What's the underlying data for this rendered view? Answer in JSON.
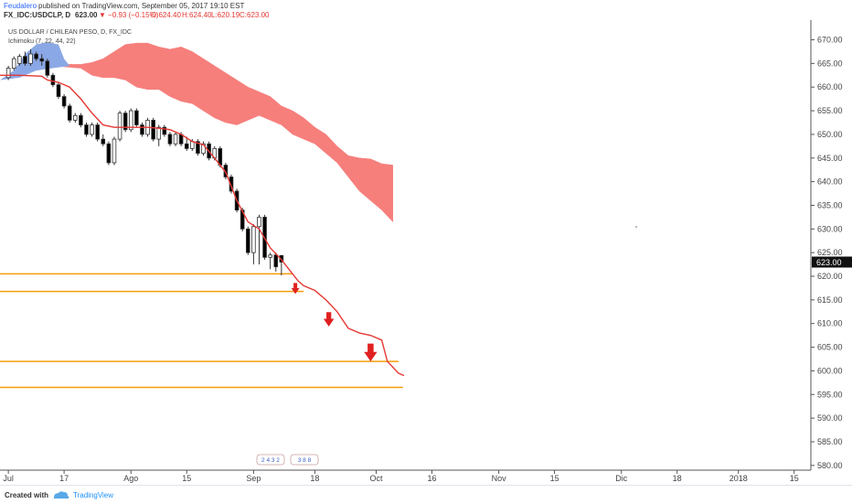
{
  "header": {
    "user": "Feudalero",
    "published": "published on TradingView.com, September 05, 2017 19:10 EST",
    "symbol": "FX_IDC:USDCLP, D",
    "last": "623.00",
    "change": "▼ −0.93 (−0.15%)",
    "open": "O:624.40",
    "high": "H:624.40",
    "low": "L:620.19",
    "close": "C:623.00",
    "colors": {
      "user": "#2962ff",
      "change": "#e53935",
      "ohlc": "#e53935"
    }
  },
  "legend": {
    "title": "US DOLLAR / CHILEAN PESO, D, FX_IDC",
    "indicator": "Ichimoku (7, 22, 44, 22)"
  },
  "price_badge": "623.00",
  "footer": {
    "created": "Created with",
    "brand": "TradingView"
  },
  "event_markers": [
    "2 4 3 2",
    "3 8 8"
  ],
  "chart_data": {
    "type": "candlestick",
    "title": "US DOLLAR / CHILEAN PESO, D, FX_IDC",
    "y_axis_position": "right",
    "y_range": [
      579,
      673
    ],
    "y_ticks": [
      580,
      585,
      590,
      595,
      600,
      605,
      610,
      615,
      620,
      625,
      630,
      635,
      640,
      645,
      650,
      655,
      660,
      665,
      670
    ],
    "x_ticks": [
      "Jul",
      "17",
      "Ago",
      "15",
      "Sep",
      "18",
      "Oct",
      "16",
      "Nov",
      "15",
      "Dic",
      "18",
      "2018",
      "15"
    ],
    "x_tick_index": [
      0,
      10,
      22,
      32,
      44,
      55,
      66,
      76,
      88,
      98,
      110,
      120,
      131,
      141
    ],
    "x_range": [
      -1.5,
      144
    ],
    "candles": [
      {
        "i": 0,
        "o": 662,
        "h": 664.5,
        "l": 661.5,
        "c": 664
      },
      {
        "i": 1,
        "o": 664,
        "h": 666.5,
        "l": 663.5,
        "c": 666
      },
      {
        "i": 2,
        "o": 665,
        "h": 667,
        "l": 664.5,
        "c": 666.5
      },
      {
        "i": 3,
        "o": 666.5,
        "h": 667.5,
        "l": 664.5,
        "c": 665
      },
      {
        "i": 4,
        "o": 665,
        "h": 668,
        "l": 664.5,
        "c": 667
      },
      {
        "i": 5,
        "o": 667,
        "h": 667.5,
        "l": 665.5,
        "c": 666
      },
      {
        "i": 6,
        "o": 666,
        "h": 667,
        "l": 664.5,
        "c": 665.5
      },
      {
        "i": 7,
        "o": 665.5,
        "h": 666,
        "l": 662,
        "c": 662.5
      },
      {
        "i": 8,
        "o": 662.5,
        "h": 663,
        "l": 660,
        "c": 660.5
      },
      {
        "i": 9,
        "o": 660.5,
        "h": 661,
        "l": 657.5,
        "c": 658
      },
      {
        "i": 10,
        "o": 658,
        "h": 658.5,
        "l": 655.5,
        "c": 656
      },
      {
        "i": 11,
        "o": 656,
        "h": 656.5,
        "l": 652.5,
        "c": 653
      },
      {
        "i": 12,
        "o": 653,
        "h": 654.5,
        "l": 652.5,
        "c": 654
      },
      {
        "i": 13,
        "o": 654,
        "h": 654.5,
        "l": 651.5,
        "c": 652
      },
      {
        "i": 14,
        "o": 652,
        "h": 652.5,
        "l": 649.5,
        "c": 650
      },
      {
        "i": 15,
        "o": 650,
        "h": 652.5,
        "l": 649.5,
        "c": 652
      },
      {
        "i": 16,
        "o": 652,
        "h": 652.5,
        "l": 648.5,
        "c": 649
      },
      {
        "i": 17,
        "o": 649,
        "h": 650,
        "l": 647.5,
        "c": 648
      },
      {
        "i": 18,
        "o": 648,
        "h": 648.5,
        "l": 643.5,
        "c": 644
      },
      {
        "i": 19,
        "o": 644,
        "h": 649.5,
        "l": 643.5,
        "c": 649
      },
      {
        "i": 20,
        "o": 649,
        "h": 655,
        "l": 648.5,
        "c": 654.5
      },
      {
        "i": 21,
        "o": 654.5,
        "h": 655,
        "l": 650.5,
        "c": 651
      },
      {
        "i": 22,
        "o": 651,
        "h": 655.5,
        "l": 650.5,
        "c": 655
      },
      {
        "i": 23,
        "o": 655,
        "h": 655.5,
        "l": 651.5,
        "c": 652
      },
      {
        "i": 24,
        "o": 652,
        "h": 652.5,
        "l": 649.5,
        "c": 650
      },
      {
        "i": 25,
        "o": 650,
        "h": 653.5,
        "l": 649.5,
        "c": 653
      },
      {
        "i": 26,
        "o": 653,
        "h": 653.5,
        "l": 648.5,
        "c": 649
      },
      {
        "i": 27,
        "o": 649,
        "h": 652,
        "l": 647.5,
        "c": 651.5
      },
      {
        "i": 28,
        "o": 651.5,
        "h": 652,
        "l": 649.5,
        "c": 650
      },
      {
        "i": 29,
        "o": 650,
        "h": 650.5,
        "l": 647.5,
        "c": 648
      },
      {
        "i": 30,
        "o": 648,
        "h": 650.5,
        "l": 647.5,
        "c": 650
      },
      {
        "i": 31,
        "o": 650,
        "h": 650.5,
        "l": 647.5,
        "c": 648
      },
      {
        "i": 32,
        "o": 648,
        "h": 649.5,
        "l": 646.5,
        "c": 647
      },
      {
        "i": 33,
        "o": 647,
        "h": 649,
        "l": 646.5,
        "c": 648.5
      },
      {
        "i": 34,
        "o": 648.5,
        "h": 649,
        "l": 645.5,
        "c": 646
      },
      {
        "i": 35,
        "o": 646,
        "h": 648.5,
        "l": 645.5,
        "c": 648
      },
      {
        "i": 36,
        "o": 648,
        "h": 648.5,
        "l": 644.5,
        "c": 645
      },
      {
        "i": 37,
        "o": 645,
        "h": 647.5,
        "l": 644.5,
        "c": 647
      },
      {
        "i": 38,
        "o": 647,
        "h": 647.5,
        "l": 643,
        "c": 643.5
      },
      {
        "i": 39,
        "o": 643.5,
        "h": 644,
        "l": 640.5,
        "c": 641
      },
      {
        "i": 40,
        "o": 641,
        "h": 641.5,
        "l": 637.5,
        "c": 638
      },
      {
        "i": 41,
        "o": 638,
        "h": 638.5,
        "l": 633.5,
        "c": 634
      },
      {
        "i": 42,
        "o": 634,
        "h": 634.5,
        "l": 629.5,
        "c": 630
      },
      {
        "i": 43,
        "o": 630,
        "h": 630.5,
        "l": 624.5,
        "c": 625
      },
      {
        "i": 44,
        "o": 625,
        "h": 631,
        "l": 622.5,
        "c": 630.5
      },
      {
        "i": 45,
        "o": 630.5,
        "h": 633,
        "l": 622.5,
        "c": 632.5
      },
      {
        "i": 46,
        "o": 632.5,
        "h": 633,
        "l": 623.5,
        "c": 624
      },
      {
        "i": 47,
        "o": 624,
        "h": 625,
        "l": 621.5,
        "c": 624.5
      },
      {
        "i": 48,
        "o": 624.5,
        "h": 625,
        "l": 621,
        "c": 622
      },
      {
        "i": 49,
        "o": 624.4,
        "h": 624.4,
        "l": 620.19,
        "c": 623
      }
    ],
    "cloud_span_a": [
      [
        5,
        664.5
      ],
      [
        8,
        664.5
      ],
      [
        10,
        664.8
      ],
      [
        13,
        664.8
      ],
      [
        15,
        665.2
      ],
      [
        17,
        666
      ],
      [
        19,
        667.5
      ],
      [
        21,
        669
      ],
      [
        23,
        669.3
      ],
      [
        25,
        669.3
      ],
      [
        27,
        668.5
      ],
      [
        29,
        668
      ],
      [
        31,
        668.5
      ],
      [
        33,
        667.5
      ],
      [
        35,
        666
      ],
      [
        37,
        664.5
      ],
      [
        39,
        663
      ],
      [
        41,
        661.5
      ],
      [
        43,
        660
      ],
      [
        45,
        659
      ],
      [
        47,
        658
      ],
      [
        49,
        656
      ],
      [
        51,
        655
      ],
      [
        53,
        653.5
      ],
      [
        55,
        651.5
      ],
      [
        57,
        650
      ],
      [
        59,
        647.5
      ],
      [
        61,
        645.5
      ],
      [
        63,
        645
      ],
      [
        65,
        644.8
      ],
      [
        67,
        643.8
      ],
      [
        69,
        643.5
      ]
    ],
    "cloud_span_b": [
      [
        5,
        664.5
      ],
      [
        8,
        664.5
      ],
      [
        10,
        664.3
      ],
      [
        13,
        664
      ],
      [
        15,
        662.5
      ],
      [
        17,
        662
      ],
      [
        19,
        662
      ],
      [
        21,
        661.5
      ],
      [
        23,
        660
      ],
      [
        25,
        659.5
      ],
      [
        27,
        659.5
      ],
      [
        29,
        658
      ],
      [
        31,
        657
      ],
      [
        33,
        656.5
      ],
      [
        35,
        655
      ],
      [
        37,
        653.5
      ],
      [
        39,
        652.5
      ],
      [
        41,
        652
      ],
      [
        43,
        653
      ],
      [
        45,
        654
      ],
      [
        47,
        653
      ],
      [
        49,
        652
      ],
      [
        51,
        650
      ],
      [
        53,
        649
      ],
      [
        55,
        648
      ],
      [
        57,
        646
      ],
      [
        59,
        644
      ],
      [
        61,
        641
      ],
      [
        63,
        638
      ],
      [
        65,
        636
      ],
      [
        67,
        634
      ],
      [
        69,
        631.5
      ]
    ],
    "cloud_bull_past": [
      [
        -1.5,
        661.5
      ],
      [
        1,
        663.5
      ],
      [
        3,
        667
      ],
      [
        5,
        669
      ],
      [
        7,
        669.5
      ],
      [
        9,
        669
      ],
      [
        10,
        666
      ],
      [
        11,
        664.5
      ]
    ],
    "cloud_colors": {
      "bear": "#f67f7c",
      "bull": "#8ba8e6"
    },
    "kijun_line": [
      [
        -1.5,
        662.5
      ],
      [
        2,
        662.5
      ],
      [
        6,
        662.3
      ],
      [
        7,
        661.5
      ],
      [
        9,
        661
      ],
      [
        11,
        660
      ],
      [
        13,
        657.5
      ],
      [
        15,
        654.5
      ],
      [
        17,
        652
      ],
      [
        19,
        651.5
      ],
      [
        21,
        651.5
      ],
      [
        23,
        651.5
      ],
      [
        25,
        651.5
      ],
      [
        27,
        651.3
      ],
      [
        29,
        651
      ],
      [
        31,
        650
      ],
      [
        33,
        648.5
      ],
      [
        35,
        647.8
      ],
      [
        37,
        645
      ],
      [
        39,
        642
      ],
      [
        41,
        636
      ],
      [
        43,
        631.5
      ],
      [
        45,
        630
      ],
      [
        47,
        626
      ],
      [
        49,
        623.5
      ],
      [
        51,
        620.5
      ],
      [
        52,
        619
      ],
      [
        53,
        618
      ],
      [
        55,
        617
      ],
      [
        57,
        615
      ],
      [
        59,
        612.5
      ],
      [
        61,
        609
      ],
      [
        63,
        608
      ],
      [
        65,
        607.5
      ],
      [
        67,
        606.5
      ],
      [
        68,
        602
      ],
      [
        70,
        599.5
      ],
      [
        71,
        599
      ]
    ],
    "kijun_color": "#e53935",
    "horizontal_lines": [
      {
        "y": 620.5,
        "x_start": -1.5,
        "x_end": 51
      },
      {
        "y": 616.8,
        "x_start": -1.5,
        "x_end": 53
      },
      {
        "y": 602,
        "x_start": -1.5,
        "x_end": 70
      },
      {
        "y": 596.5,
        "x_start": -1.5,
        "x_end": 70.8
      }
    ],
    "horizontal_line_color": "#f59e0b",
    "arrows": [
      {
        "x": 51.5,
        "y": 617.5
      },
      {
        "x": 57.5,
        "y": 611
      },
      {
        "x": 65,
        "y": 604
      }
    ],
    "arrow_color": "#e02020",
    "candle_colors": {
      "up": "#ffffff",
      "down": "#000000",
      "outline": "#333333"
    }
  }
}
